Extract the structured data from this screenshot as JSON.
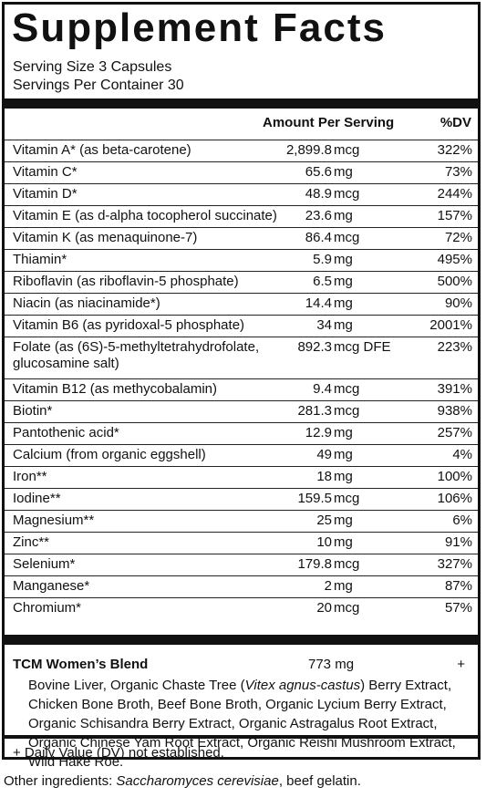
{
  "title": "Supplement Facts",
  "serving_size": "Serving Size 3 Capsules",
  "servings_per_container": "Servings Per Container 30",
  "header": {
    "amount": "Amount Per Serving",
    "dv": "%DV"
  },
  "nutrients": [
    {
      "name": "Vitamin A* (as beta-carotene)",
      "amount": "2,899.8",
      "unit": "mcg",
      "dv": "322%"
    },
    {
      "name": "Vitamin C*",
      "amount": "65.6",
      "unit": "mg",
      "dv": "73%"
    },
    {
      "name": "Vitamin D*",
      "amount": "48.9",
      "unit": "mcg",
      "dv": "244%"
    },
    {
      "name": "Vitamin E (as d-alpha tocopherol succinate)",
      "amount": "23.6",
      "unit": "mg",
      "dv": "157%"
    },
    {
      "name": "Vitamin K (as menaquinone-7)",
      "amount": "86.4",
      "unit": "mcg",
      "dv": "72%"
    },
    {
      "name": "Thiamin*",
      "amount": "5.9",
      "unit": "mg",
      "dv": "495%"
    },
    {
      "name": "Riboflavin (as riboflavin-5 phosphate)",
      "amount": "6.5",
      "unit": "mg",
      "dv": "500%"
    },
    {
      "name": "Niacin (as niacinamide*)",
      "amount": "14.4",
      "unit": "mg",
      "dv": "90%"
    },
    {
      "name": "Vitamin B6 (as pyridoxal-5 phosphate)",
      "amount": "34",
      "unit": "mg",
      "dv": "2001%"
    },
    {
      "name": "Folate (as (6S)-5-methyltetrahydrofolate,",
      "name2": "glucosamine salt)",
      "amount": "892.3",
      "unit": "mcg DFE",
      "dv": "223%"
    },
    {
      "name": "Vitamin B12 (as methycobalamin)",
      "amount": "9.4",
      "unit": "mcg",
      "dv": "391%"
    },
    {
      "name": "Biotin*",
      "amount": "281.3",
      "unit": "mcg",
      "dv": "938%"
    },
    {
      "name": "Pantothenic acid*",
      "amount": "12.9",
      "unit": "mg",
      "dv": "257%"
    },
    {
      "name": "Calcium (from organic eggshell)",
      "amount": "49",
      "unit": "mg",
      "dv": "4%"
    },
    {
      "name": "Iron**",
      "amount": "18",
      "unit": "mg",
      "dv": "100%"
    },
    {
      "name": "Iodine**",
      "amount": "159.5",
      "unit": "mcg",
      "dv": "106%"
    },
    {
      "name": "Magnesium**",
      "amount": "25",
      "unit": "mg",
      "dv": "6%"
    },
    {
      "name": "Zinc**",
      "amount": "10",
      "unit": "mg",
      "dv": "91%"
    },
    {
      "name": "Selenium*",
      "amount": "179.8",
      "unit": "mcg",
      "dv": "327%"
    },
    {
      "name": "Manganese*",
      "amount": "2",
      "unit": "mg",
      "dv": "87%"
    },
    {
      "name": "Chromium*",
      "amount": "20",
      "unit": "mcg",
      "dv": "57%"
    }
  ],
  "blend": {
    "title": "TCM Women’s Blend",
    "amount": "773 mg",
    "dv": "+",
    "text_before": "Bovine Liver, Organic Chaste Tree (",
    "text_italic": "Vitex agnus-castus",
    "text_after": ") Berry Extract, Chicken Bone Broth, Beef Bone Broth, Organic Lycium Berry Extract, Organic Schisandra Berry Extract, Organic Astragalus Root Extract, Organic Chinese Yam Root Extract, Organic Reishi Mushroom Extract, Wild Hake Roe."
  },
  "footnote": "+ Daily Value (DV) not established.",
  "other": {
    "label": "Other ingredients: ",
    "italic": "Saccharomyces cerevisiae",
    "rest": ", beef gelatin."
  }
}
